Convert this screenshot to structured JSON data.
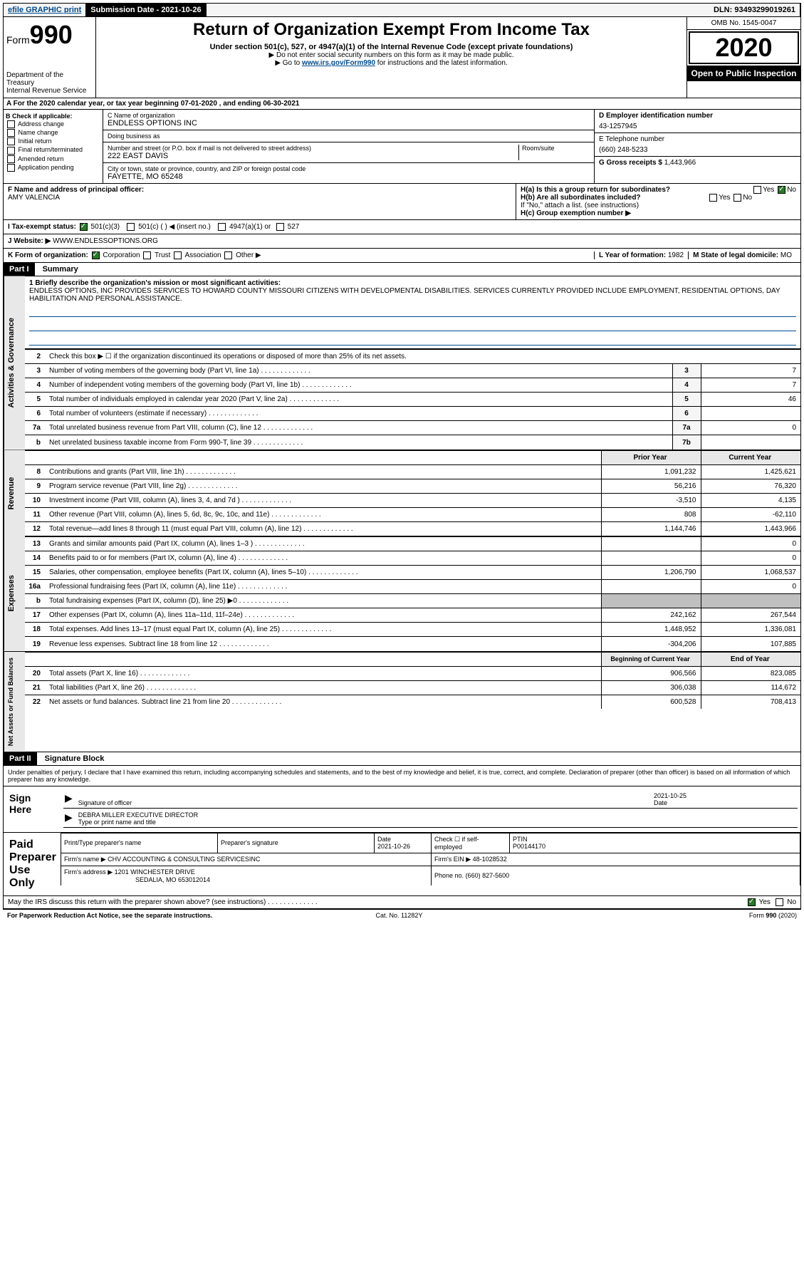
{
  "topbar": {
    "efile": "efile GRAPHIC print",
    "submission_label": "Submission Date - 2021-10-26",
    "dln": "DLN: 93493299019261"
  },
  "header": {
    "form_prefix": "Form",
    "form_num": "990",
    "dept": "Department of the Treasury\nInternal Revenue Service",
    "title": "Return of Organization Exempt From Income Tax",
    "subtitle": "Under section 501(c), 527, or 4947(a)(1) of the Internal Revenue Code (except private foundations)",
    "note1": "▶ Do not enter social security numbers on this form as it may be made public.",
    "note2_pre": "▶ Go to ",
    "note2_link": "www.irs.gov/Form990",
    "note2_post": " for instructions and the latest information.",
    "omb": "OMB No. 1545-0047",
    "year": "2020",
    "public": "Open to Public Inspection"
  },
  "period": "A For the 2020 calendar year, or tax year beginning 07-01-2020   , and ending 06-30-2021",
  "section_b": {
    "label": "B Check if applicable:",
    "items": [
      "Address change",
      "Name change",
      "Initial return",
      "Final return/terminated",
      "Amended return",
      "Application pending"
    ]
  },
  "section_c": {
    "name_label": "C Name of organization",
    "name": "ENDLESS OPTIONS INC",
    "dba_label": "Doing business as",
    "dba": "",
    "addr_label": "Number and street (or P.O. box if mail is not delivered to street address)",
    "room_label": "Room/suite",
    "addr": "222 EAST DAVIS",
    "city_label": "City or town, state or province, country, and ZIP or foreign postal code",
    "city": "FAYETTE, MO  65248"
  },
  "section_d": {
    "label": "D Employer identification number",
    "ein": "43-1257945"
  },
  "section_e": {
    "label": "E Telephone number",
    "phone": "(660) 248-5233"
  },
  "section_g": {
    "label": "G Gross receipts $",
    "amount": "1,443,966"
  },
  "section_f": {
    "label": "F  Name and address of principal officer:",
    "name": "AMY VALENCIA"
  },
  "section_h": {
    "ha": "H(a)  Is this a group return for subordinates?",
    "hb": "H(b)  Are all subordinates included?",
    "hb_note": "If \"No,\" attach a list. (see instructions)",
    "hc": "H(c)  Group exemption number ▶"
  },
  "tax_status": {
    "label": "I  Tax-exempt status:",
    "opts": [
      "501(c)(3)",
      "501(c) (  ) ◀ (insert no.)",
      "4947(a)(1) or",
      "527"
    ]
  },
  "website": {
    "label": "J  Website: ▶",
    "url": "WWW.ENDLESSOPTIONS.ORG"
  },
  "section_k": {
    "label": "K Form of organization:",
    "opts": [
      "Corporation",
      "Trust",
      "Association",
      "Other ▶"
    ],
    "l_label": "L Year of formation:",
    "l_val": "1982",
    "m_label": "M State of legal domicile:",
    "m_val": "MO"
  },
  "part1": {
    "header": "Part I",
    "title": "Summary",
    "side_labels": [
      "Activities & Governance",
      "Revenue",
      "Expenses",
      "Net Assets or Fund Balances"
    ],
    "mission_label": "1  Briefly describe the organization's mission or most significant activities:",
    "mission": "ENDLESS OPTIONS, INC PROVIDES SERVICES TO HOWARD COUNTY MISSOURI CITIZENS WITH DEVELOPMENTAL DISABILITIES. SERVICES CURRENTLY PROVIDED INCLUDE EMPLOYMENT, RESIDENTIAL OPTIONS, DAY HABILITATION AND PERSONAL ASSISTANCE.",
    "line2": "Check this box ▶ ☐  if the organization discontinued its operations or disposed of more than 25% of its net assets.",
    "governance_rows": [
      {
        "n": "3",
        "t": "Number of voting members of the governing body (Part VI, line 1a)",
        "box": "3",
        "v": "7"
      },
      {
        "n": "4",
        "t": "Number of independent voting members of the governing body (Part VI, line 1b)",
        "box": "4",
        "v": "7"
      },
      {
        "n": "5",
        "t": "Total number of individuals employed in calendar year 2020 (Part V, line 2a)",
        "box": "5",
        "v": "46"
      },
      {
        "n": "6",
        "t": "Total number of volunteers (estimate if necessary)",
        "box": "6",
        "v": ""
      },
      {
        "n": "7a",
        "t": "Total unrelated business revenue from Part VIII, column (C), line 12",
        "box": "7a",
        "v": "0"
      },
      {
        "n": "b",
        "t": "Net unrelated business taxable income from Form 990-T, line 39",
        "box": "7b",
        "v": ""
      }
    ],
    "col_headers": {
      "prior": "Prior Year",
      "current": "Current Year"
    },
    "revenue_rows": [
      {
        "n": "8",
        "t": "Contributions and grants (Part VIII, line 1h)",
        "p": "1,091,232",
        "c": "1,425,621"
      },
      {
        "n": "9",
        "t": "Program service revenue (Part VIII, line 2g)",
        "p": "56,216",
        "c": "76,320"
      },
      {
        "n": "10",
        "t": "Investment income (Part VIII, column (A), lines 3, 4, and 7d )",
        "p": "-3,510",
        "c": "4,135"
      },
      {
        "n": "11",
        "t": "Other revenue (Part VIII, column (A), lines 5, 6d, 8c, 9c, 10c, and 11e)",
        "p": "808",
        "c": "-62,110"
      },
      {
        "n": "12",
        "t": "Total revenue—add lines 8 through 11 (must equal Part VIII, column (A), line 12)",
        "p": "1,144,746",
        "c": "1,443,966"
      }
    ],
    "expense_rows": [
      {
        "n": "13",
        "t": "Grants and similar amounts paid (Part IX, column (A), lines 1–3 )",
        "p": "",
        "c": "0"
      },
      {
        "n": "14",
        "t": "Benefits paid to or for members (Part IX, column (A), line 4)",
        "p": "",
        "c": "0"
      },
      {
        "n": "15",
        "t": "Salaries, other compensation, employee benefits (Part IX, column (A), lines 5–10)",
        "p": "1,206,790",
        "c": "1,068,537"
      },
      {
        "n": "16a",
        "t": "Professional fundraising fees (Part IX, column (A), line 11e)",
        "p": "",
        "c": "0"
      },
      {
        "n": "b",
        "t": "Total fundraising expenses (Part IX, column (D), line 25) ▶0",
        "p": "GRAY",
        "c": "GRAY"
      },
      {
        "n": "17",
        "t": "Other expenses (Part IX, column (A), lines 11a–11d, 11f–24e)",
        "p": "242,162",
        "c": "267,544"
      },
      {
        "n": "18",
        "t": "Total expenses. Add lines 13–17 (must equal Part IX, column (A), line 25)",
        "p": "1,448,952",
        "c": "1,336,081"
      },
      {
        "n": "19",
        "t": "Revenue less expenses. Subtract line 18 from line 12",
        "p": "-304,206",
        "c": "107,885"
      }
    ],
    "balance_headers": {
      "begin": "Beginning of Current Year",
      "end": "End of Year"
    },
    "balance_rows": [
      {
        "n": "20",
        "t": "Total assets (Part X, line 16)",
        "p": "906,566",
        "c": "823,085"
      },
      {
        "n": "21",
        "t": "Total liabilities (Part X, line 26)",
        "p": "306,038",
        "c": "114,672"
      },
      {
        "n": "22",
        "t": "Net assets or fund balances. Subtract line 21 from line 20",
        "p": "600,528",
        "c": "708,413"
      }
    ]
  },
  "part2": {
    "header": "Part II",
    "title": "Signature Block",
    "declaration": "Under penalties of perjury, I declare that I have examined this return, including accompanying schedules and statements, and to the best of my knowledge and belief, it is true, correct, and complete. Declaration of preparer (other than officer) is based on all information of which preparer has any knowledge.",
    "sign_here": "Sign Here",
    "sig_officer": "Signature of officer",
    "sig_date": "2021-10-25",
    "sig_date_label": "Date",
    "officer_name": "DEBRA MILLER  EXECUTIVE DIRECTOR",
    "officer_label": "Type or print name and title",
    "paid_label": "Paid Preparer Use Only",
    "prep": {
      "name_label": "Print/Type preparer's name",
      "sig_label": "Preparer's signature",
      "date_label": "Date",
      "date": "2021-10-26",
      "check_label": "Check ☐ if self-employed",
      "ptin_label": "PTIN",
      "ptin": "P00144170",
      "firm_name_label": "Firm's name    ▶",
      "firm_name": "CHV ACCOUNTING & CONSULTING SERVICESINC",
      "firm_ein_label": "Firm's EIN ▶",
      "firm_ein": "48-1028532",
      "firm_addr_label": "Firm's address ▶",
      "firm_addr": "1201 WINCHESTER DRIVE",
      "firm_city": "SEDALIA, MO  653012014",
      "phone_label": "Phone no.",
      "phone": "(660) 827-5600"
    },
    "discuss": "May the IRS discuss this return with the preparer shown above? (see instructions)"
  },
  "footer": {
    "left": "For Paperwork Reduction Act Notice, see the separate instructions.",
    "center": "Cat. No. 11282Y",
    "right": "Form 990 (2020)"
  }
}
